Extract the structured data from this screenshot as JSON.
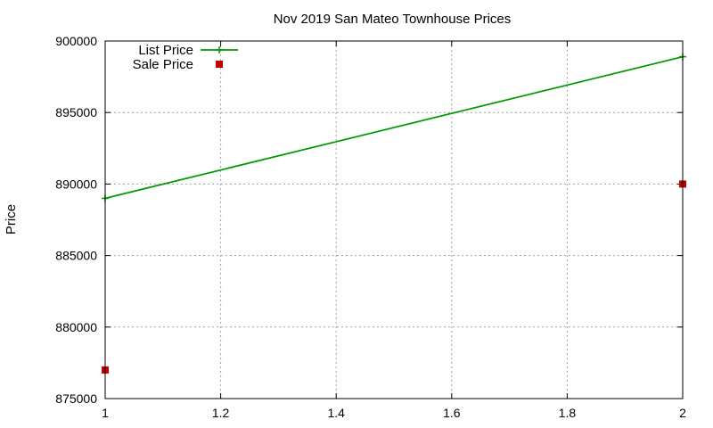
{
  "chart_data": {
    "type": "line",
    "title": "Nov 2019 San Mateo Townhouse Prices",
    "xlabel": "",
    "ylabel": "Price",
    "xlim": [
      1,
      2
    ],
    "ylim": [
      875000,
      900000
    ],
    "xticks": [
      "1",
      "1.2",
      "1.4",
      "1.6",
      "1.8",
      "2"
    ],
    "yticks": [
      "875000",
      "880000",
      "885000",
      "890000",
      "895000",
      "900000"
    ],
    "grid": true,
    "legend_position": "top-left",
    "series": [
      {
        "name": "List Price",
        "style": "lines+points",
        "marker": "plus",
        "color": "#009900",
        "x": [
          1,
          2
        ],
        "y": [
          889000,
          898900
        ]
      },
      {
        "name": "Sale Price",
        "style": "points",
        "marker": "square",
        "color": "#c00000",
        "x": [
          1,
          2
        ],
        "y": [
          877000,
          890000
        ]
      }
    ]
  }
}
